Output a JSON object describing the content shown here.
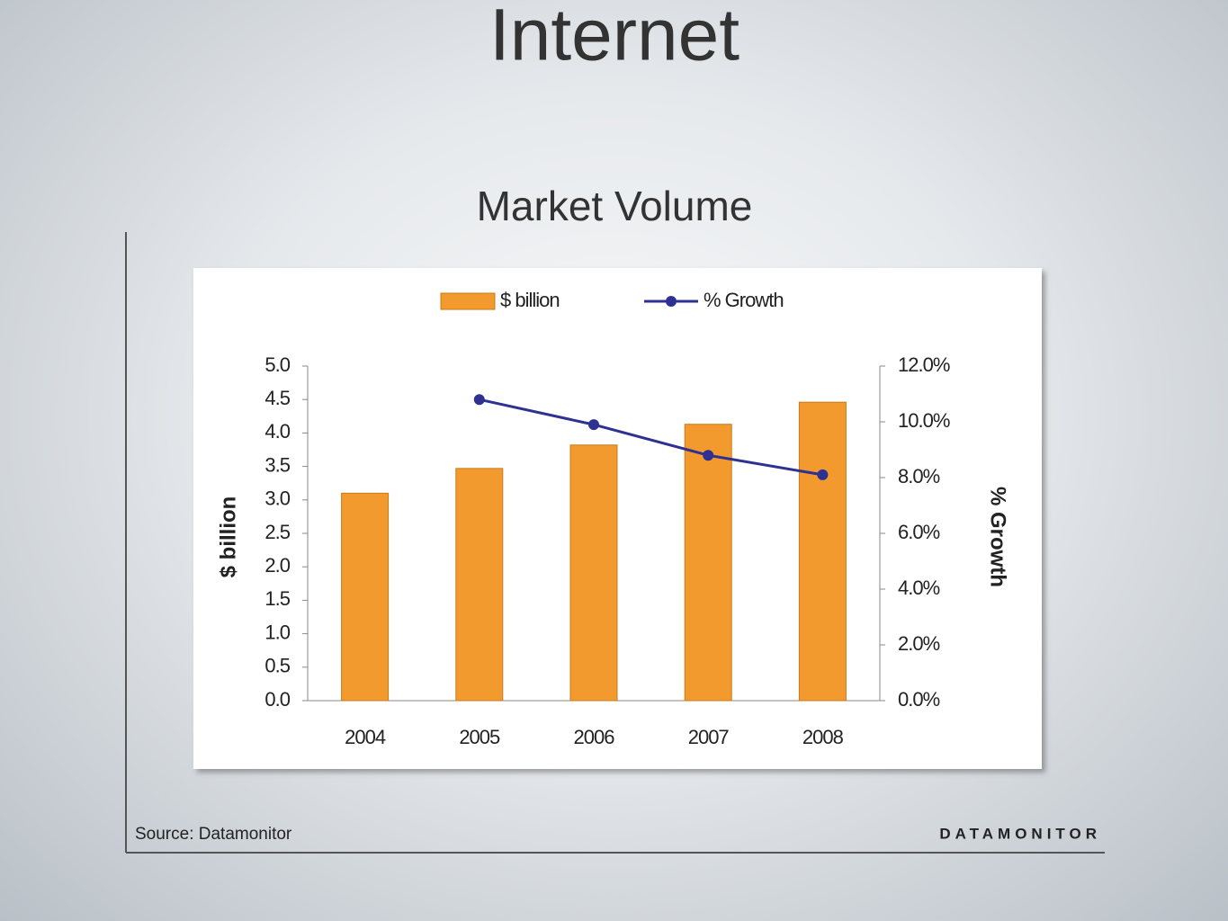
{
  "slide_title": "Internet",
  "slide_subtitle": "Market Volume",
  "chart_data": {
    "type": "bar",
    "source": "Source: Datamonitor",
    "brand": "DATAMONITOR",
    "y_label": "$ billion",
    "y2_label": "% Growth",
    "categories": [
      "2004",
      "2005",
      "2006",
      "2007",
      "2008"
    ],
    "series": [
      {
        "name": "$ billion",
        "type": "bar",
        "color": "#f29a2e",
        "values": [
          3.1,
          3.47,
          3.82,
          4.13,
          4.46
        ]
      },
      {
        "name": "% Growth",
        "type": "line",
        "axis": "y2",
        "color": "#2e3192",
        "values": [
          null,
          10.8,
          9.9,
          8.8,
          8.1
        ]
      }
    ],
    "ylim": [
      0,
      5
    ],
    "yticks": [
      {
        "value": 0,
        "label": "0.0"
      },
      0.5,
      {
        "value": 1,
        "label": "1.0"
      },
      1.5,
      {
        "value": 2,
        "label": "2.0"
      },
      2.5,
      {
        "value": 3,
        "label": "3.0"
      },
      3.5,
      {
        "value": 4,
        "label": "4.0"
      },
      4.5,
      {
        "value": 5,
        "label": "5.0"
      }
    ],
    "y2lim": [
      0,
      12
    ],
    "y2ticks": [
      {
        "value": 0,
        "label": "0.0%"
      },
      {
        "value": 2,
        "label": "2.0%"
      },
      {
        "value": 4,
        "label": "4.0%"
      },
      {
        "value": 6,
        "label": "6.0%"
      },
      {
        "value": 8,
        "label": "8.0%"
      },
      {
        "value": 10,
        "label": "10.0%"
      },
      {
        "value": 12,
        "label": "12.0%"
      }
    ],
    "grid": false,
    "legend": "top"
  }
}
